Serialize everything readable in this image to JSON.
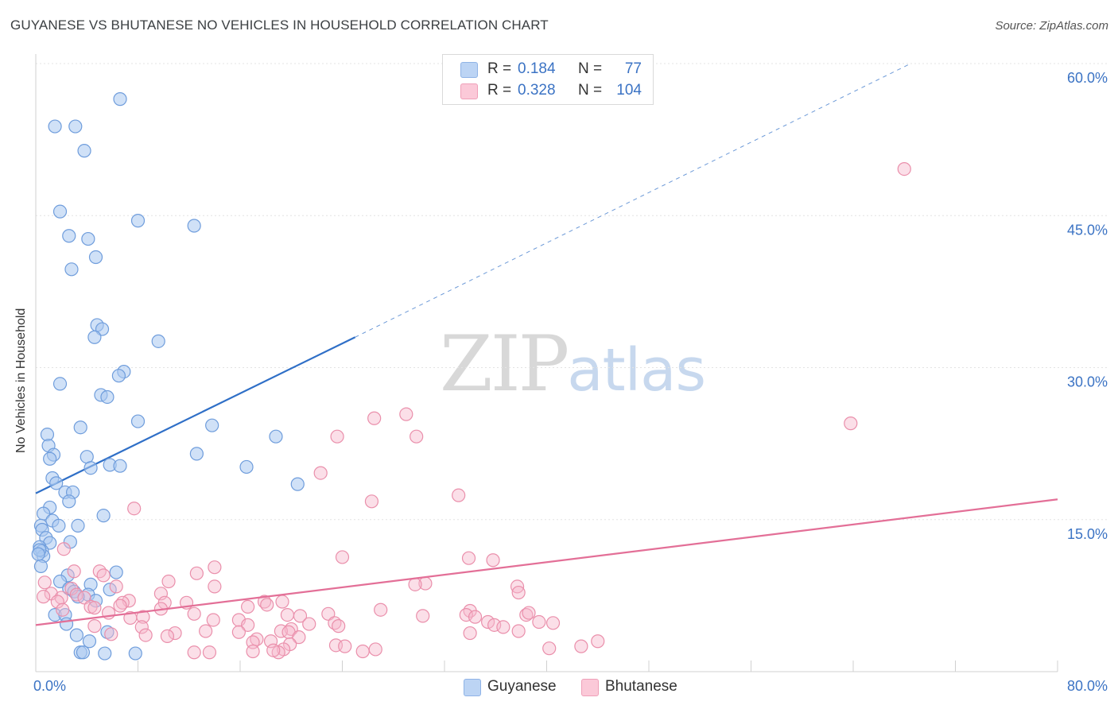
{
  "title": "GUYANESE VS BHUTANESE NO VEHICLES IN HOUSEHOLD CORRELATION CHART",
  "source": "Source: ZipAtlas.com",
  "watermark": {
    "zip": "ZIP",
    "atlas": "atlas"
  },
  "colors": {
    "blue_fill": "#a9c8f0",
    "blue_stroke": "#6f9ddc",
    "blue_line": "#2f6fc7",
    "pink_fill": "#f7b8cb",
    "pink_stroke": "#ea8fab",
    "pink_line": "#e36f97",
    "tick_text": "#3b73c4",
    "grid": "#e3e3e3"
  },
  "legend": {
    "rows": [
      {
        "r_label": "R =",
        "r_value": "0.184",
        "n_label": "N =",
        "n_value": "77"
      },
      {
        "r_label": "R =",
        "r_value": "0.328",
        "n_label": "N =",
        "n_value": "104"
      }
    ]
  },
  "bottom_legend": [
    "Guyanese",
    "Bhutanese"
  ],
  "chart_data": {
    "type": "scatter",
    "title": "GUYANESE VS BHUTANESE NO VEHICLES IN HOUSEHOLD CORRELATION CHART",
    "xlabel": "",
    "ylabel": "No Vehicles in Household",
    "xlim": [
      0,
      80
    ],
    "ylim": [
      0,
      60
    ],
    "x_tick_labels": [
      "0.0%",
      "80.0%"
    ],
    "y_ticks": [
      15,
      30,
      45,
      60
    ],
    "y_tick_labels": [
      "15.0%",
      "30.0%",
      "45.0%",
      "60.0%"
    ],
    "grid": true,
    "legend_position": "top-center",
    "series": [
      {
        "name": "Guyanese",
        "R": 0.184,
        "N": 77,
        "trend": {
          "x_start": 0,
          "y_start": 17.6,
          "x_solid_end": 25,
          "y_solid_end": 33.0,
          "x_dash_end": 68.5,
          "y_dash_end": 60
        },
        "points": [
          [
            6.6,
            56.5
          ],
          [
            1.5,
            53.8
          ],
          [
            3.1,
            53.8
          ],
          [
            3.8,
            51.4
          ],
          [
            1.9,
            45.4
          ],
          [
            8.0,
            44.5
          ],
          [
            12.4,
            44.0
          ],
          [
            2.6,
            43.0
          ],
          [
            4.1,
            42.7
          ],
          [
            4.7,
            40.9
          ],
          [
            2.8,
            39.7
          ],
          [
            4.8,
            34.2
          ],
          [
            5.2,
            33.8
          ],
          [
            4.6,
            33.0
          ],
          [
            9.6,
            32.6
          ],
          [
            6.9,
            29.6
          ],
          [
            6.5,
            29.2
          ],
          [
            1.9,
            28.4
          ],
          [
            5.1,
            27.3
          ],
          [
            5.6,
            27.1
          ],
          [
            8.0,
            24.7
          ],
          [
            13.8,
            24.3
          ],
          [
            3.5,
            24.1
          ],
          [
            18.8,
            23.2
          ],
          [
            0.9,
            23.4
          ],
          [
            1.0,
            22.3
          ],
          [
            1.4,
            21.4
          ],
          [
            1.1,
            21.0
          ],
          [
            4.0,
            21.2
          ],
          [
            12.6,
            21.5
          ],
          [
            5.8,
            20.4
          ],
          [
            6.6,
            20.3
          ],
          [
            4.3,
            20.1
          ],
          [
            16.5,
            20.2
          ],
          [
            1.3,
            19.1
          ],
          [
            1.6,
            18.6
          ],
          [
            20.5,
            18.5
          ],
          [
            2.3,
            17.7
          ],
          [
            2.9,
            17.7
          ],
          [
            2.6,
            16.8
          ],
          [
            1.1,
            16.2
          ],
          [
            5.3,
            15.4
          ],
          [
            0.6,
            15.6
          ],
          [
            1.3,
            14.9
          ],
          [
            0.4,
            14.4
          ],
          [
            1.8,
            14.4
          ],
          [
            3.3,
            14.4
          ],
          [
            0.5,
            14.0
          ],
          [
            0.8,
            13.2
          ],
          [
            1.1,
            12.7
          ],
          [
            2.7,
            12.8
          ],
          [
            0.3,
            12.3
          ],
          [
            0.5,
            11.9
          ],
          [
            0.6,
            11.4
          ],
          [
            0.4,
            10.4
          ],
          [
            6.3,
            9.8
          ],
          [
            2.5,
            9.5
          ],
          [
            1.9,
            8.9
          ],
          [
            4.3,
            8.6
          ],
          [
            2.6,
            8.2
          ],
          [
            5.8,
            8.1
          ],
          [
            3.0,
            7.9
          ],
          [
            4.1,
            7.6
          ],
          [
            3.3,
            7.4
          ],
          [
            4.7,
            7.0
          ],
          [
            1.5,
            5.6
          ],
          [
            2.3,
            5.6
          ],
          [
            2.4,
            4.7
          ],
          [
            5.6,
            3.9
          ],
          [
            3.2,
            3.6
          ],
          [
            4.2,
            3.0
          ],
          [
            3.5,
            1.9
          ],
          [
            3.7,
            1.9
          ],
          [
            5.4,
            1.8
          ],
          [
            7.8,
            1.8
          ],
          [
            0.3,
            12.0
          ],
          [
            0.2,
            11.6
          ]
        ]
      },
      {
        "name": "Bhutanese",
        "R": 0.328,
        "N": 104,
        "trend": {
          "x_start": 0,
          "y_start": 4.6,
          "x_end": 80,
          "y_end": 17.0
        },
        "points": [
          [
            68.0,
            49.6
          ],
          [
            63.8,
            24.5
          ],
          [
            29.0,
            25.4
          ],
          [
            26.5,
            25.0
          ],
          [
            23.6,
            23.2
          ],
          [
            29.8,
            23.2
          ],
          [
            22.3,
            19.6
          ],
          [
            26.3,
            16.8
          ],
          [
            33.1,
            17.4
          ],
          [
            7.7,
            16.1
          ],
          [
            2.2,
            12.1
          ],
          [
            24.0,
            11.3
          ],
          [
            33.9,
            11.2
          ],
          [
            35.8,
            11.0
          ],
          [
            14.0,
            10.3
          ],
          [
            3.0,
            9.9
          ],
          [
            5.0,
            9.9
          ],
          [
            12.6,
            9.7
          ],
          [
            5.3,
            9.5
          ],
          [
            10.4,
            8.9
          ],
          [
            0.7,
            8.8
          ],
          [
            30.5,
            8.7
          ],
          [
            29.7,
            8.6
          ],
          [
            37.7,
            8.4
          ],
          [
            14.0,
            8.4
          ],
          [
            6.3,
            8.4
          ],
          [
            2.8,
            8.2
          ],
          [
            37.8,
            7.8
          ],
          [
            1.2,
            7.7
          ],
          [
            9.8,
            7.7
          ],
          [
            3.2,
            7.6
          ],
          [
            0.6,
            7.4
          ],
          [
            2.0,
            7.3
          ],
          [
            3.8,
            7.3
          ],
          [
            7.3,
            7.0
          ],
          [
            1.7,
            6.9
          ],
          [
            10.1,
            6.8
          ],
          [
            6.8,
            6.8
          ],
          [
            17.9,
            6.9
          ],
          [
            19.3,
            6.9
          ],
          [
            11.8,
            6.8
          ],
          [
            18.1,
            6.6
          ],
          [
            6.6,
            6.5
          ],
          [
            16.6,
            6.4
          ],
          [
            4.3,
            6.4
          ],
          [
            4.6,
            6.3
          ],
          [
            9.8,
            6.2
          ],
          [
            2.1,
            6.1
          ],
          [
            27.0,
            6.1
          ],
          [
            34.0,
            6.0
          ],
          [
            5.7,
            5.8
          ],
          [
            12.4,
            5.7
          ],
          [
            22.9,
            5.7
          ],
          [
            19.7,
            5.6
          ],
          [
            33.7,
            5.6
          ],
          [
            38.4,
            5.6
          ],
          [
            38.6,
            5.8
          ],
          [
            20.7,
            5.5
          ],
          [
            30.3,
            5.5
          ],
          [
            34.4,
            5.4
          ],
          [
            8.4,
            5.4
          ],
          [
            7.4,
            5.3
          ],
          [
            13.9,
            5.1
          ],
          [
            15.9,
            5.1
          ],
          [
            35.4,
            4.9
          ],
          [
            39.4,
            4.9
          ],
          [
            23.4,
            4.8
          ],
          [
            40.5,
            4.8
          ],
          [
            21.4,
            4.7
          ],
          [
            16.6,
            4.6
          ],
          [
            35.9,
            4.6
          ],
          [
            36.6,
            4.4
          ],
          [
            4.6,
            4.5
          ],
          [
            8.3,
            4.4
          ],
          [
            23.7,
            4.5
          ],
          [
            20.0,
            4.2
          ],
          [
            13.3,
            4.0
          ],
          [
            19.2,
            4.0
          ],
          [
            10.9,
            3.8
          ],
          [
            15.9,
            3.9
          ],
          [
            19.8,
            3.9
          ],
          [
            5.9,
            3.7
          ],
          [
            8.6,
            3.6
          ],
          [
            10.3,
            3.5
          ],
          [
            20.6,
            3.4
          ],
          [
            17.3,
            3.2
          ],
          [
            18.4,
            3.0
          ],
          [
            17.0,
            2.9
          ],
          [
            19.9,
            2.7
          ],
          [
            23.5,
            2.6
          ],
          [
            24.2,
            2.5
          ],
          [
            19.4,
            2.2
          ],
          [
            26.6,
            2.2
          ],
          [
            42.7,
            2.5
          ],
          [
            34.0,
            3.8
          ],
          [
            37.8,
            4.0
          ],
          [
            40.2,
            2.3
          ],
          [
            44.0,
            3.0
          ],
          [
            19.0,
            1.9
          ],
          [
            17.0,
            2.0
          ],
          [
            13.6,
            1.9
          ],
          [
            12.4,
            1.9
          ],
          [
            18.6,
            2.1
          ],
          [
            25.6,
            2.0
          ]
        ]
      }
    ]
  }
}
